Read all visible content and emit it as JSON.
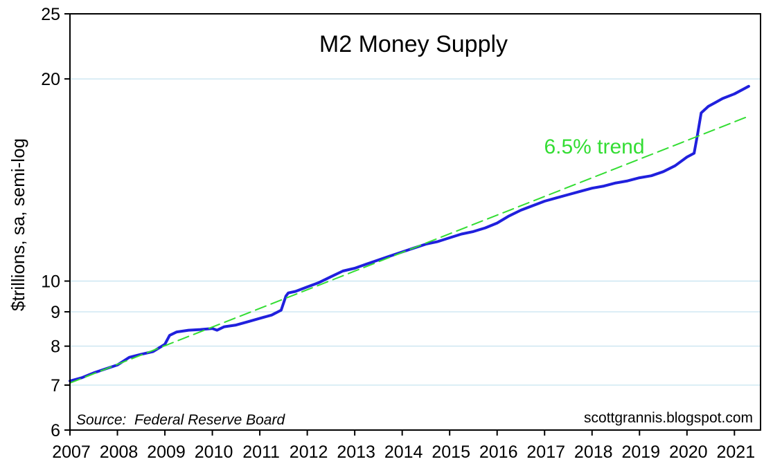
{
  "chart_data": {
    "type": "line",
    "title": "M2 Money Supply",
    "ylabel": "$trillions, sa, semi-log",
    "xlabel": "",
    "y_scale": "log",
    "ylim": [
      6,
      25
    ],
    "xlim": [
      2007,
      2021.55
    ],
    "y_ticks": [
      6,
      7,
      8,
      9,
      10,
      20,
      25
    ],
    "x_ticks": [
      2007,
      2008,
      2009,
      2010,
      2011,
      2012,
      2013,
      2014,
      2015,
      2016,
      2017,
      2018,
      2019,
      2020,
      2021
    ],
    "grid": "horizontal",
    "series": [
      {
        "name": "",
        "style": "solid",
        "color": "#2020dd",
        "x": [
          2007.0,
          2007.25,
          2007.5,
          2007.75,
          2008.0,
          2008.25,
          2008.5,
          2008.75,
          2009.0,
          2009.1,
          2009.25,
          2009.5,
          2009.75,
          2010.0,
          2010.1,
          2010.25,
          2010.5,
          2010.75,
          2011.0,
          2011.25,
          2011.45,
          2011.55,
          2011.6,
          2011.75,
          2012.0,
          2012.25,
          2012.5,
          2012.75,
          2013.0,
          2013.25,
          2013.5,
          2013.75,
          2014.0,
          2014.25,
          2014.5,
          2014.75,
          2015.0,
          2015.25,
          2015.5,
          2015.75,
          2016.0,
          2016.25,
          2016.5,
          2016.75,
          2017.0,
          2017.25,
          2017.5,
          2017.75,
          2018.0,
          2018.25,
          2018.5,
          2018.75,
          2019.0,
          2019.25,
          2019.5,
          2019.75,
          2020.0,
          2020.15,
          2020.22,
          2020.3,
          2020.45,
          2020.6,
          2020.75,
          2021.0,
          2021.15,
          2021.3
        ],
        "y": [
          7.1,
          7.18,
          7.3,
          7.4,
          7.5,
          7.7,
          7.78,
          7.85,
          8.05,
          8.3,
          8.4,
          8.45,
          8.47,
          8.5,
          8.45,
          8.55,
          8.6,
          8.7,
          8.8,
          8.9,
          9.05,
          9.5,
          9.6,
          9.65,
          9.8,
          9.95,
          10.15,
          10.35,
          10.45,
          10.6,
          10.75,
          10.9,
          11.05,
          11.2,
          11.35,
          11.45,
          11.6,
          11.75,
          11.85,
          12.0,
          12.2,
          12.5,
          12.75,
          12.95,
          13.15,
          13.3,
          13.45,
          13.6,
          13.75,
          13.85,
          14.0,
          14.1,
          14.25,
          14.35,
          14.55,
          14.85,
          15.3,
          15.5,
          16.5,
          17.8,
          18.2,
          18.45,
          18.7,
          19.0,
          19.25,
          19.5
        ]
      },
      {
        "name": "6.5% trend",
        "style": "dashed",
        "color": "#33dd33",
        "x": [
          2007.0,
          2021.3
        ],
        "y": [
          7.05,
          17.6
        ]
      }
    ],
    "annotations": {
      "trend_label": "6.5% trend",
      "source": "Source:  Federal Reserve Board",
      "credit": "scottgrannis.blogspot.com"
    }
  }
}
